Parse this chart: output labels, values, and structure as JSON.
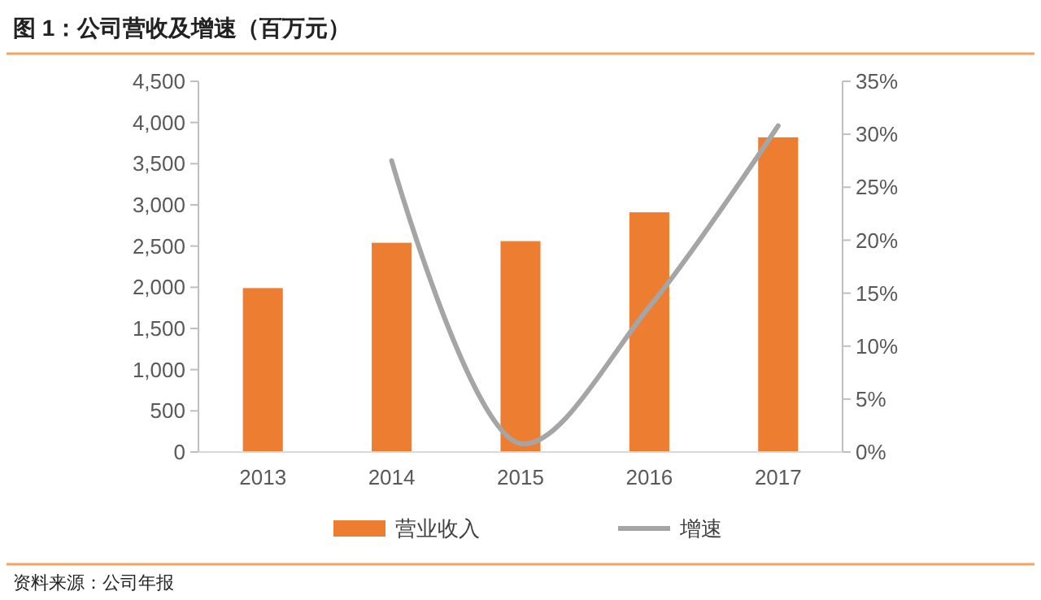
{
  "chart_data": {
    "type": "bar",
    "title": "图 1：公司营收及增速（百万元）",
    "categories": [
      "2013",
      "2014",
      "2015",
      "2016",
      "2017"
    ],
    "series": [
      {
        "name": "营业收入",
        "color": "#ed7d31",
        "values": [
          1990,
          2540,
          2560,
          2910,
          3820
        ]
      },
      {
        "name": "增速",
        "type": "line",
        "color": "#a5a5a5",
        "axis": "y2",
        "values": [
          null,
          27.5,
          0.8,
          13.7,
          30.8
        ]
      }
    ],
    "ylim": [
      0,
      4500
    ],
    "yticks": [
      {
        "value": 0,
        "label": "0"
      },
      {
        "value": 500,
        "label": "500"
      },
      {
        "value": 1000,
        "label": "1,000"
      },
      {
        "value": 1500,
        "label": "1,500"
      },
      {
        "value": 2000,
        "label": "2,000"
      },
      {
        "value": 2500,
        "label": "2,500"
      },
      {
        "value": 3000,
        "label": "3,000"
      },
      {
        "value": 3500,
        "label": "3,500"
      },
      {
        "value": 4000,
        "label": "4,000"
      },
      {
        "value": 4500,
        "label": "4,500"
      }
    ],
    "y2lim": [
      0,
      35
    ],
    "y2ticks": [
      {
        "value": 0,
        "label": "0%"
      },
      {
        "value": 5,
        "label": "5%"
      },
      {
        "value": 10,
        "label": "10%"
      },
      {
        "value": 15,
        "label": "15%"
      },
      {
        "value": 20,
        "label": "20%"
      },
      {
        "value": 25,
        "label": "25%"
      },
      {
        "value": 30,
        "label": "30%"
      },
      {
        "value": 35,
        "label": "35%"
      }
    ],
    "grid": false,
    "legend": "bottom",
    "annotations": [
      "资料来源：公司年报"
    ]
  }
}
